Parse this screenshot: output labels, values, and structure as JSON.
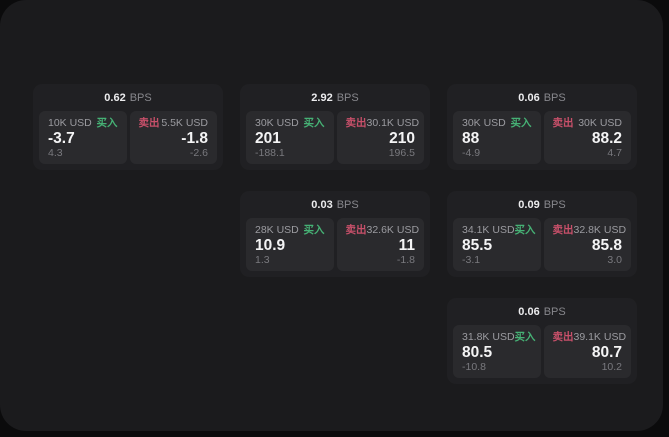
{
  "labels": {
    "bps": "BPS",
    "buy": "买入",
    "sell": "卖出"
  },
  "colors": {
    "buy": "#46b175",
    "sell": "#c8506a",
    "page_bg": "#0b0b0c",
    "window_bg": "#1b1b1d",
    "card_bg": "#202023",
    "panel_bg": "#2a2a2d",
    "value_text": "#f4f4f5"
  },
  "cards": [
    {
      "row": 1,
      "col": 1,
      "bps": "0.62",
      "buy": {
        "size": "10K USD",
        "value": "-3.7",
        "sub": "4.3"
      },
      "sell": {
        "size": "5.5K USD",
        "value": "-1.8",
        "sub": "-2.6"
      }
    },
    {
      "row": 1,
      "col": 2,
      "bps": "2.92",
      "buy": {
        "size": "30K USD",
        "value": "201",
        "sub": "-188.1"
      },
      "sell": {
        "size": "30.1K USD",
        "value": "210",
        "sub": "196.5"
      }
    },
    {
      "row": 1,
      "col": 3,
      "bps": "0.06",
      "buy": {
        "size": "30K USD",
        "value": "88",
        "sub": "-4.9"
      },
      "sell": {
        "size": "30K USD",
        "value": "88.2",
        "sub": "4.7"
      }
    },
    {
      "row": 2,
      "col": 2,
      "bps": "0.03",
      "buy": {
        "size": "28K USD",
        "value": "10.9",
        "sub": "1.3"
      },
      "sell": {
        "size": "32.6K USD",
        "value": "11",
        "sub": "-1.8"
      }
    },
    {
      "row": 2,
      "col": 3,
      "bps": "0.09",
      "buy": {
        "size": "34.1K USD",
        "value": "85.5",
        "sub": "-3.1"
      },
      "sell": {
        "size": "32.8K USD",
        "value": "85.8",
        "sub": "3.0"
      }
    },
    {
      "row": 3,
      "col": 3,
      "bps": "0.06",
      "buy": {
        "size": "31.8K USD",
        "value": "80.5",
        "sub": "-10.8"
      },
      "sell": {
        "size": "39.1K USD",
        "value": "80.7",
        "sub": "10.2"
      }
    }
  ]
}
